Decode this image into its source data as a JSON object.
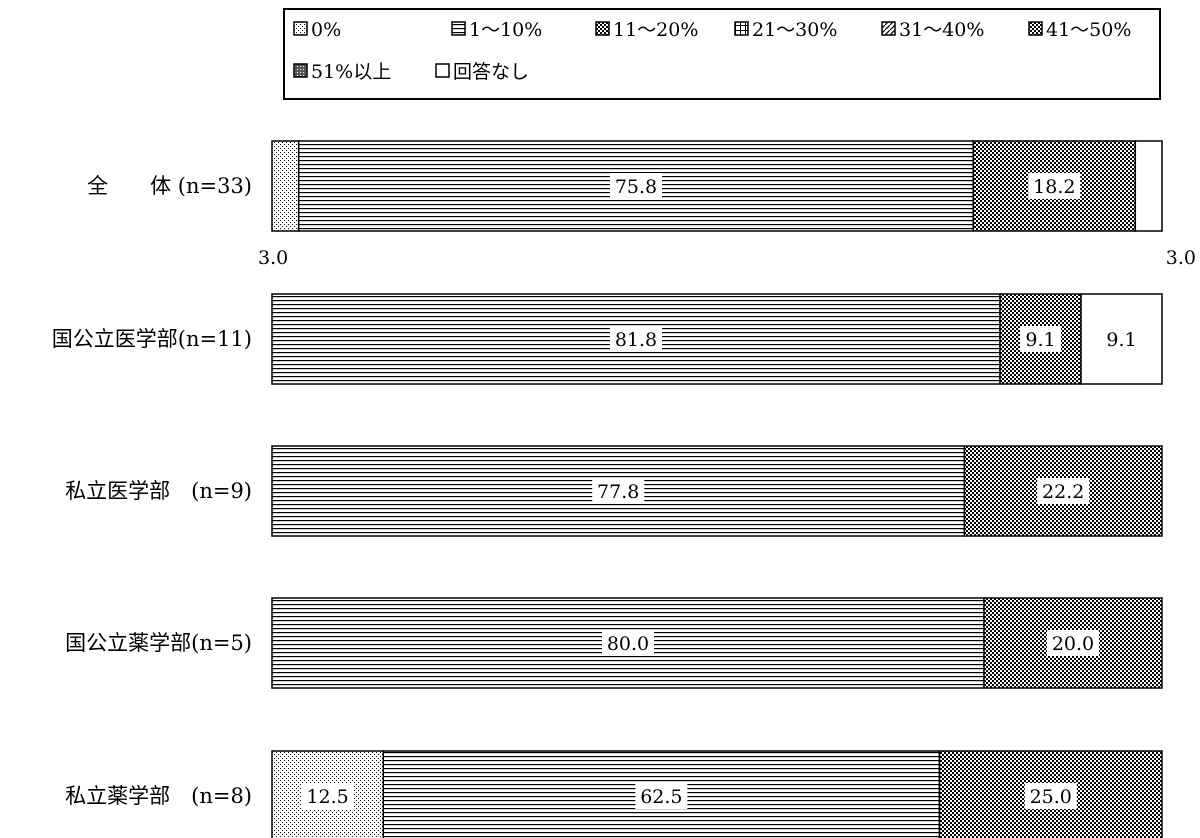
{
  "chart_data": {
    "type": "bar",
    "orientation": "horizontal",
    "stacked": true,
    "percent_stacked": true,
    "legend_position": "top",
    "grid": false,
    "xlim": [
      0,
      100
    ],
    "legend": [
      {
        "key": "p0",
        "label": "0%"
      },
      {
        "key": "p1",
        "label": "1～10%"
      },
      {
        "key": "p11",
        "label": "11～20%"
      },
      {
        "key": "p21",
        "label": "21～30%"
      },
      {
        "key": "p31",
        "label": "31～40%"
      },
      {
        "key": "p41",
        "label": "41～50%"
      },
      {
        "key": "p51",
        "label": "51%以上"
      },
      {
        "key": "na",
        "label": "回答なし"
      }
    ],
    "categories": [
      {
        "label": "全　　体 (n=33)"
      },
      {
        "label": "国公立医学部(n=11)"
      },
      {
        "label": "私立医学部　(n=9)"
      },
      {
        "label": "国公立薬学部(n=5)"
      },
      {
        "label": "私立薬学部　(n=8)"
      }
    ],
    "series": [
      {
        "name": "0%",
        "key": "p0",
        "values": [
          3.0,
          0,
          0,
          0,
          12.5
        ],
        "labels": [
          "3.0",
          "",
          "",
          "",
          "12.5"
        ]
      },
      {
        "name": "1～10%",
        "key": "p1",
        "values": [
          75.8,
          81.8,
          77.8,
          80.0,
          62.5
        ],
        "labels": [
          "75.8",
          "81.8",
          "77.8",
          "80.0",
          "62.5"
        ]
      },
      {
        "name": "11～20%",
        "key": "p11",
        "values": [
          18.2,
          9.1,
          22.2,
          20.0,
          25.0
        ],
        "labels": [
          "18.2",
          "9.1",
          "22.2",
          "20.0",
          "25.0"
        ]
      },
      {
        "name": "21～30%",
        "key": "p21",
        "values": [
          0,
          0,
          0,
          0,
          0
        ],
        "labels": [
          "",
          "",
          "",
          "",
          ""
        ]
      },
      {
        "name": "31～40%",
        "key": "p31",
        "values": [
          0,
          0,
          0,
          0,
          0
        ],
        "labels": [
          "",
          "",
          "",
          "",
          ""
        ]
      },
      {
        "name": "41～50%",
        "key": "p41",
        "values": [
          0,
          0,
          0,
          0,
          0
        ],
        "labels": [
          "",
          "",
          "",
          "",
          ""
        ]
      },
      {
        "name": "51%以上",
        "key": "p51",
        "values": [
          0,
          0,
          0,
          0,
          0
        ],
        "labels": [
          "",
          "",
          "",
          "",
          ""
        ]
      },
      {
        "name": "回答なし",
        "key": "na",
        "values": [
          3.0,
          9.1,
          0,
          0,
          0
        ],
        "labels": [
          "3.0",
          "9.1",
          "",
          "",
          ""
        ]
      }
    ]
  }
}
